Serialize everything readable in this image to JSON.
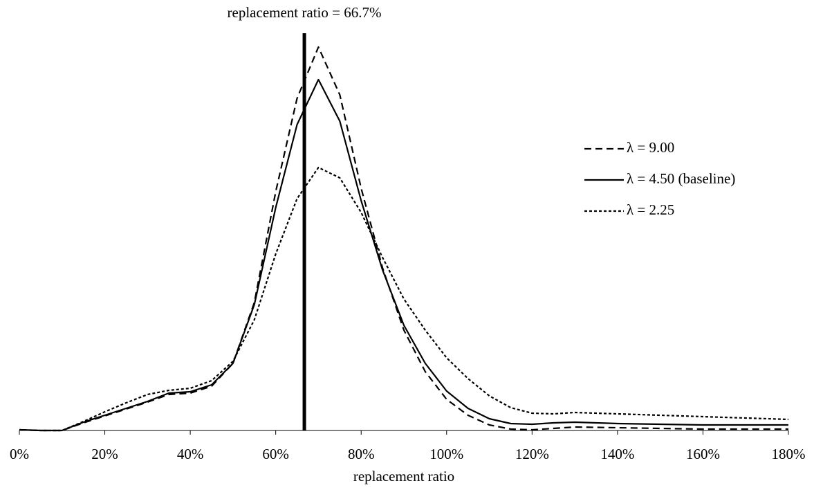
{
  "chart_data": {
    "type": "line",
    "title": "replacement ratio = 66.7%",
    "reference_line": 66.7,
    "x_label": "replacement ratio",
    "x": [
      0,
      5,
      10,
      15,
      20,
      25,
      30,
      35,
      40,
      45,
      50,
      55,
      60,
      65,
      70,
      75,
      80,
      85,
      90,
      95,
      100,
      105,
      110,
      115,
      120,
      125,
      130,
      140,
      150,
      160,
      170,
      180
    ],
    "series": [
      {
        "name": "λ = 9.00",
        "color": "#000000",
        "dash": "10,6",
        "values": [
          1,
          0,
          0,
          11,
          21,
          31,
          41,
          52,
          54,
          64,
          97,
          185,
          345,
          480,
          554,
          485,
          350,
          235,
          145,
          85,
          45,
          22,
          8,
          2,
          1,
          3,
          5,
          4,
          3,
          2,
          2,
          2
        ]
      },
      {
        "name": "λ = 4.50 (baseline)",
        "color": "#000000",
        "dash": "none",
        "values": [
          1,
          0,
          0,
          12,
          22,
          32,
          42,
          54,
          56,
          66,
          97,
          182,
          322,
          442,
          507,
          447,
          332,
          232,
          152,
          97,
          57,
          32,
          17,
          10,
          9,
          11,
          12,
          10,
          9,
          8,
          8,
          8
        ]
      },
      {
        "name": "λ = 2.25",
        "color": "#000000",
        "dash": "4,3",
        "values": [
          1,
          0,
          0,
          13,
          27,
          40,
          52,
          58,
          61,
          72,
          100,
          160,
          255,
          335,
          380,
          365,
          315,
          250,
          190,
          145,
          105,
          75,
          50,
          33,
          25,
          24,
          26,
          24,
          22,
          20,
          18,
          16
        ]
      }
    ],
    "xlim": [
      0,
      180
    ],
    "xticks": [
      {
        "value": 0,
        "label": "0%"
      },
      {
        "value": 20,
        "label": "20%"
      },
      {
        "value": 40,
        "label": "40%"
      },
      {
        "value": 60,
        "label": "60%"
      },
      {
        "value": 80,
        "label": "80%"
      },
      {
        "value": 100,
        "label": "100%"
      },
      {
        "value": 120,
        "label": "120%"
      },
      {
        "value": 140,
        "label": "140%"
      },
      {
        "value": 160,
        "label": "160%"
      },
      {
        "value": 180,
        "label": "180%"
      }
    ],
    "ylim": [
      0,
      560
    ],
    "legend": "right"
  }
}
